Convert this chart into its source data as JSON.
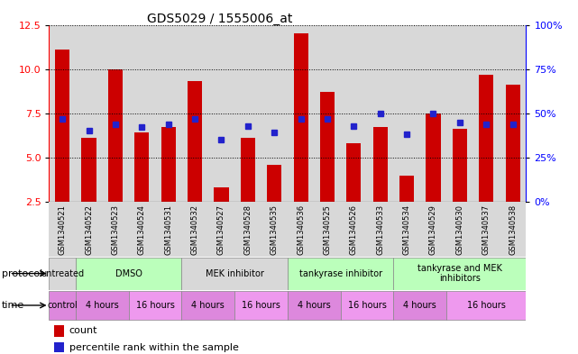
{
  "title": "GDS5029 / 1555006_at",
  "samples": [
    "GSM1340521",
    "GSM1340522",
    "GSM1340523",
    "GSM1340524",
    "GSM1340531",
    "GSM1340532",
    "GSM1340527",
    "GSM1340528",
    "GSM1340535",
    "GSM1340536",
    "GSM1340525",
    "GSM1340526",
    "GSM1340533",
    "GSM1340534",
    "GSM1340529",
    "GSM1340530",
    "GSM1340537",
    "GSM1340538"
  ],
  "counts": [
    11.1,
    6.1,
    10.0,
    6.4,
    6.7,
    9.3,
    3.3,
    6.1,
    4.6,
    12.0,
    8.7,
    5.8,
    6.7,
    4.0,
    7.5,
    6.6,
    9.7,
    9.1
  ],
  "percentiles": [
    47,
    40,
    44,
    42,
    44,
    47,
    35,
    43,
    39,
    47,
    47,
    43,
    50,
    38,
    50,
    45,
    44,
    44
  ],
  "ylim_left": [
    2.5,
    12.5
  ],
  "ylim_right": [
    0,
    100
  ],
  "yticks_left": [
    2.5,
    5.0,
    7.5,
    10.0,
    12.5
  ],
  "yticks_right": [
    0,
    25,
    50,
    75,
    100
  ],
  "bar_color": "#cc0000",
  "dot_color": "#2222cc",
  "col_bg_color": "#d8d8d8",
  "plot_bg_color": "#ffffff",
  "proto_data": [
    {
      "label": "untreated",
      "start": 0,
      "end": 1,
      "color": "#d8d8d8"
    },
    {
      "label": "DMSO",
      "start": 1,
      "end": 5,
      "color": "#bbffbb"
    },
    {
      "label": "MEK inhibitor",
      "start": 5,
      "end": 9,
      "color": "#d8d8d8"
    },
    {
      "label": "tankyrase inhibitor",
      "start": 9,
      "end": 13,
      "color": "#bbffbb"
    },
    {
      "label": "tankyrase and MEK\ninhibitors",
      "start": 13,
      "end": 18,
      "color": "#bbffbb"
    }
  ],
  "time_data": [
    {
      "label": "control",
      "start": 0,
      "end": 1,
      "color": "#dd88dd"
    },
    {
      "label": "4 hours",
      "start": 1,
      "end": 3,
      "color": "#dd88dd"
    },
    {
      "label": "16 hours",
      "start": 3,
      "end": 5,
      "color": "#ee99ee"
    },
    {
      "label": "4 hours",
      "start": 5,
      "end": 7,
      "color": "#dd88dd"
    },
    {
      "label": "16 hours",
      "start": 7,
      "end": 9,
      "color": "#ee99ee"
    },
    {
      "label": "4 hours",
      "start": 9,
      "end": 11,
      "color": "#dd88dd"
    },
    {
      "label": "16 hours",
      "start": 11,
      "end": 13,
      "color": "#ee99ee"
    },
    {
      "label": "4 hours",
      "start": 13,
      "end": 15,
      "color": "#dd88dd"
    },
    {
      "label": "16 hours",
      "start": 15,
      "end": 18,
      "color": "#ee99ee"
    }
  ]
}
